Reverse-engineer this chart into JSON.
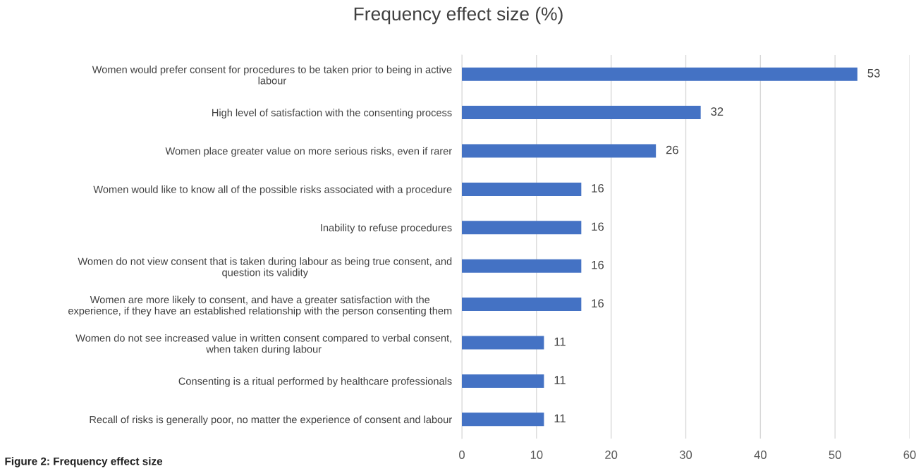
{
  "chart_data": {
    "type": "bar",
    "orientation": "horizontal",
    "title": "Frequency effect size (%)",
    "categories": [
      "Women would prefer consent for procedures to be taken prior to being in active\nlabour",
      "High level of satisfaction with the consenting process",
      "Women place greater value on more serious risks, even if rarer",
      "Women would like to know all of the possible risks associated with a procedure",
      "Inability to refuse procedures",
      "Women do not view consent that is taken during labour as being true consent, and\nquestion its validity",
      "Women are more likely to consent, and have a greater satisfaction with the\nexperience, if they have an established relationship with the person consenting them",
      "Women do not see increased value in written consent compared to verbal consent,\nwhen taken during labour",
      "Consenting is a ritual performed by healthcare professionals",
      "Recall of risks is generally poor, no matter the experience of consent and labour"
    ],
    "values": [
      53,
      32,
      26,
      16,
      16,
      16,
      16,
      11,
      11,
      11
    ],
    "color": "#4472c4",
    "data_labels": true,
    "grid": "x",
    "xlim": [
      0,
      60
    ],
    "xticks": [
      0,
      10,
      20,
      30,
      40,
      50,
      60
    ],
    "annotations": [
      "Figure 2: Frequency effect size"
    ]
  }
}
